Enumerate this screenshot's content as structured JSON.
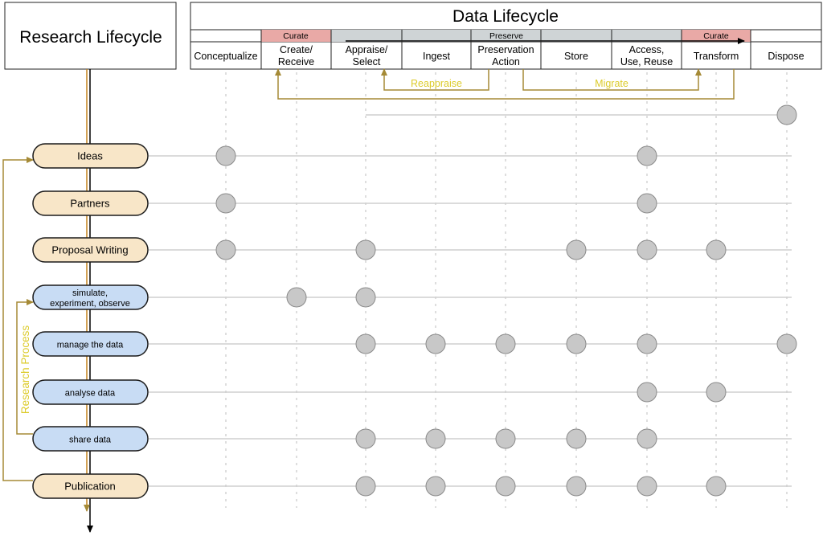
{
  "research_lifecycle_title": "Research Lifecycle",
  "data_lifecycle_title": "Data Lifecycle",
  "bands": [
    {
      "label": "Curate",
      "color": "#e9a9a6"
    },
    {
      "label": "Preserve",
      "color": "#cfd4d6"
    },
    {
      "label": "Curate",
      "color": "#e9a9a6"
    }
  ],
  "stages": [
    {
      "lines": [
        "Conceptualize"
      ]
    },
    {
      "lines": [
        "Create/",
        "Receive"
      ]
    },
    {
      "lines": [
        "Appraise/",
        "Select"
      ]
    },
    {
      "lines": [
        "Ingest"
      ]
    },
    {
      "lines": [
        "Preservation",
        "Action"
      ]
    },
    {
      "lines": [
        "Store"
      ]
    },
    {
      "lines": [
        "Access,",
        "Use, Reuse"
      ]
    },
    {
      "lines": [
        "Transform"
      ]
    },
    {
      "lines": [
        "Dispose"
      ]
    }
  ],
  "loops": [
    {
      "label": "Reappraise",
      "from": 4,
      "to": 2
    },
    {
      "label": "Migrate",
      "from": 4,
      "to": 7
    }
  ],
  "research_process_label": "Research Process",
  "colors": {
    "phase_fill": "#f8e6c8",
    "process_fill": "#c8dcf4",
    "loop_line": "#a58a36",
    "loop_text": "#dccb2a",
    "node_fill": "#c8c8c8"
  },
  "phases": [
    {
      "label": "Ideas",
      "kind": "phase",
      "stages": [
        0,
        6
      ]
    },
    {
      "label": "Partners",
      "kind": "phase",
      "stages": [
        0,
        6
      ]
    },
    {
      "label": "Proposal Writing",
      "kind": "phase",
      "stages": [
        0,
        2,
        5,
        6,
        7
      ]
    },
    {
      "label": "simulate, experiment, observe",
      "kind": "process",
      "stages": [
        1,
        2
      ]
    },
    {
      "label": "manage the data",
      "kind": "process",
      "stages": [
        2,
        3,
        4,
        5,
        6,
        8
      ]
    },
    {
      "label": "analyse data",
      "kind": "process",
      "stages": [
        6,
        7
      ]
    },
    {
      "label": "share data",
      "kind": "process",
      "stages": [
        2,
        3,
        4,
        5,
        6
      ]
    },
    {
      "label": "Publication",
      "kind": "phase",
      "stages": [
        2,
        3,
        4,
        5,
        6,
        7
      ]
    }
  ],
  "dispose_row_stages": [
    8
  ]
}
